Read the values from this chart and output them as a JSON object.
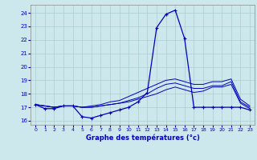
{
  "title": "Graphe des températures (°c)",
  "bg_color": "#cce8ec",
  "grid_color": "#aacccc",
  "line_color": "#0000bb",
  "xlim": [
    -0.5,
    23.5
  ],
  "ylim": [
    15.7,
    24.6
  ],
  "xticks": [
    0,
    1,
    2,
    3,
    4,
    5,
    6,
    7,
    8,
    9,
    10,
    11,
    12,
    13,
    14,
    15,
    16,
    17,
    18,
    19,
    20,
    21,
    22,
    23
  ],
  "yticks": [
    16,
    17,
    18,
    19,
    20,
    21,
    22,
    23,
    24
  ],
  "hours": [
    0,
    1,
    2,
    3,
    4,
    5,
    6,
    7,
    8,
    9,
    10,
    11,
    12,
    13,
    14,
    15,
    16,
    17,
    18,
    19,
    20,
    21,
    22,
    23
  ],
  "temp_main": [
    17.2,
    16.9,
    16.9,
    17.1,
    17.1,
    16.3,
    16.2,
    16.4,
    16.6,
    16.8,
    17.0,
    17.4,
    18.1,
    22.9,
    23.9,
    24.2,
    22.1,
    17.0,
    17.0,
    17.0,
    17.0,
    17.0,
    17.0,
    16.8
  ],
  "temp_avg": [
    17.2,
    17.1,
    17.0,
    17.1,
    17.1,
    17.0,
    17.0,
    17.1,
    17.2,
    17.3,
    17.5,
    17.7,
    18.0,
    18.4,
    18.7,
    18.8,
    18.6,
    18.4,
    18.4,
    18.6,
    18.6,
    18.9,
    17.4,
    17.0
  ],
  "temp_max": [
    17.2,
    17.1,
    17.0,
    17.1,
    17.1,
    17.0,
    17.1,
    17.2,
    17.4,
    17.5,
    17.8,
    18.1,
    18.4,
    18.7,
    19.0,
    19.1,
    18.9,
    18.7,
    18.7,
    18.9,
    18.9,
    19.1,
    17.6,
    17.1
  ],
  "temp_min": [
    17.2,
    17.1,
    17.0,
    17.1,
    17.1,
    17.0,
    17.0,
    17.1,
    17.2,
    17.3,
    17.4,
    17.6,
    17.8,
    18.0,
    18.3,
    18.5,
    18.3,
    18.1,
    18.2,
    18.5,
    18.5,
    18.7,
    17.3,
    16.9
  ]
}
